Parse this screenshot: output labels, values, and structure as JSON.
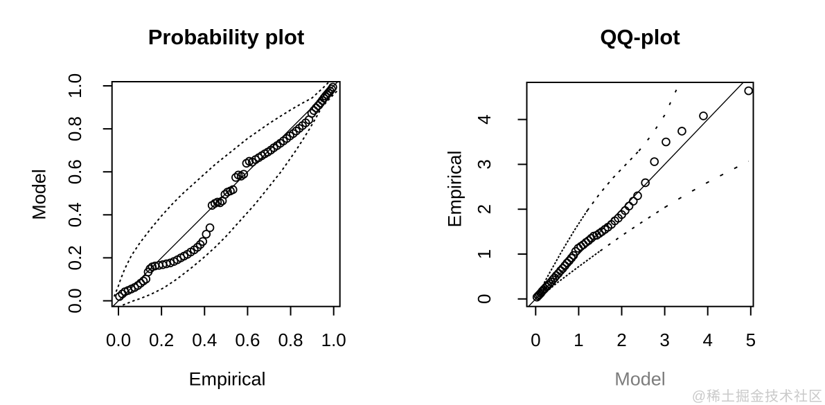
{
  "watermark": {
    "text": "@稀土掘金技术社区",
    "color": "#c9c9c9"
  },
  "chart_data": [
    {
      "type": "scatter",
      "title": "Probability plot",
      "xlabel": "Empirical",
      "ylabel": "Model",
      "xlim": [
        0,
        1
      ],
      "ylim": [
        0,
        1
      ],
      "grid": false,
      "legend": null,
      "marker": "open-circle",
      "reference_line": {
        "slope": 1,
        "intercept": 0,
        "style": "solid"
      },
      "band_style": "dashed",
      "x_tick_values": [
        0,
        0.2,
        0.4,
        0.6,
        0.8,
        1.0
      ],
      "x_tick_labels": [
        "0.0",
        "0.2",
        "0.4",
        "0.6",
        "0.8",
        "1.0"
      ],
      "y_tick_values": [
        0,
        0.2,
        0.4,
        0.6,
        0.8,
        1.0
      ],
      "y_tick_labels": [
        "0.0",
        "0.2",
        "0.4",
        "0.6",
        "0.8",
        "1.0"
      ],
      "points": [
        [
          0.005,
          0.02
        ],
        [
          0.018,
          0.032
        ],
        [
          0.03,
          0.042
        ],
        [
          0.045,
          0.048
        ],
        [
          0.06,
          0.055
        ],
        [
          0.075,
          0.062
        ],
        [
          0.09,
          0.071
        ],
        [
          0.103,
          0.082
        ],
        [
          0.116,
          0.092
        ],
        [
          0.128,
          0.101
        ],
        [
          0.138,
          0.134
        ],
        [
          0.147,
          0.149
        ],
        [
          0.157,
          0.158
        ],
        [
          0.17,
          0.162
        ],
        [
          0.188,
          0.165
        ],
        [
          0.206,
          0.168
        ],
        [
          0.223,
          0.172
        ],
        [
          0.241,
          0.176
        ],
        [
          0.258,
          0.183
        ],
        [
          0.274,
          0.191
        ],
        [
          0.29,
          0.2
        ],
        [
          0.305,
          0.208
        ],
        [
          0.32,
          0.216
        ],
        [
          0.336,
          0.227
        ],
        [
          0.352,
          0.237
        ],
        [
          0.367,
          0.249
        ],
        [
          0.38,
          0.262
        ],
        [
          0.392,
          0.276
        ],
        [
          0.408,
          0.31
        ],
        [
          0.425,
          0.34
        ],
        [
          0.435,
          0.444
        ],
        [
          0.448,
          0.453
        ],
        [
          0.46,
          0.459
        ],
        [
          0.472,
          0.456
        ],
        [
          0.483,
          0.465
        ],
        [
          0.495,
          0.495
        ],
        [
          0.507,
          0.506
        ],
        [
          0.52,
          0.511
        ],
        [
          0.532,
          0.517
        ],
        [
          0.545,
          0.574
        ],
        [
          0.557,
          0.585
        ],
        [
          0.57,
          0.58
        ],
        [
          0.582,
          0.589
        ],
        [
          0.595,
          0.64
        ],
        [
          0.608,
          0.649
        ],
        [
          0.622,
          0.645
        ],
        [
          0.637,
          0.657
        ],
        [
          0.652,
          0.666
        ],
        [
          0.666,
          0.675
        ],
        [
          0.68,
          0.684
        ],
        [
          0.694,
          0.692
        ],
        [
          0.708,
          0.701
        ],
        [
          0.722,
          0.712
        ],
        [
          0.737,
          0.722
        ],
        [
          0.752,
          0.733
        ],
        [
          0.767,
          0.744
        ],
        [
          0.782,
          0.755
        ],
        [
          0.797,
          0.767
        ],
        [
          0.812,
          0.778
        ],
        [
          0.826,
          0.79
        ],
        [
          0.84,
          0.802
        ],
        [
          0.855,
          0.815
        ],
        [
          0.87,
          0.828
        ],
        [
          0.885,
          0.842
        ],
        [
          0.898,
          0.872
        ],
        [
          0.908,
          0.885
        ],
        [
          0.918,
          0.897
        ],
        [
          0.928,
          0.908
        ],
        [
          0.938,
          0.92
        ],
        [
          0.947,
          0.932
        ],
        [
          0.955,
          0.943
        ],
        [
          0.962,
          0.952
        ],
        [
          0.969,
          0.96
        ],
        [
          0.976,
          0.968
        ],
        [
          0.983,
          0.976
        ],
        [
          0.99,
          0.985
        ],
        [
          0.996,
          0.994
        ]
      ],
      "upper_band": [
        [
          -0.02,
          0.02
        ],
        [
          0.0,
          0.07
        ],
        [
          0.01,
          0.1
        ],
        [
          0.03,
          0.15
        ],
        [
          0.06,
          0.21
        ],
        [
          0.1,
          0.27
        ],
        [
          0.15,
          0.335
        ],
        [
          0.2,
          0.395
        ],
        [
          0.25,
          0.45
        ],
        [
          0.3,
          0.5
        ],
        [
          0.35,
          0.545
        ],
        [
          0.4,
          0.59
        ],
        [
          0.45,
          0.635
        ],
        [
          0.5,
          0.675
        ],
        [
          0.55,
          0.715
        ],
        [
          0.6,
          0.755
        ],
        [
          0.65,
          0.79
        ],
        [
          0.7,
          0.825
        ],
        [
          0.75,
          0.857
        ],
        [
          0.8,
          0.888
        ],
        [
          0.85,
          0.917
        ],
        [
          0.9,
          0.944
        ],
        [
          0.93,
          0.972
        ],
        [
          0.95,
          0.99
        ],
        [
          0.965,
          1.005
        ],
        [
          0.98,
          1.02
        ]
      ],
      "lower_band": [
        [
          0.02,
          -0.02
        ],
        [
          0.07,
          0.0
        ],
        [
          0.1,
          0.01
        ],
        [
          0.15,
          0.03
        ],
        [
          0.21,
          0.06
        ],
        [
          0.27,
          0.1
        ],
        [
          0.335,
          0.15
        ],
        [
          0.395,
          0.2
        ],
        [
          0.45,
          0.25
        ],
        [
          0.5,
          0.3
        ],
        [
          0.545,
          0.35
        ],
        [
          0.59,
          0.4
        ],
        [
          0.635,
          0.45
        ],
        [
          0.675,
          0.5
        ],
        [
          0.715,
          0.55
        ],
        [
          0.755,
          0.6
        ],
        [
          0.79,
          0.65
        ],
        [
          0.825,
          0.7
        ],
        [
          0.857,
          0.75
        ],
        [
          0.888,
          0.8
        ],
        [
          0.917,
          0.85
        ],
        [
          0.944,
          0.9
        ],
        [
          0.972,
          0.93
        ],
        [
          0.99,
          0.95
        ],
        [
          1.005,
          0.965
        ],
        [
          1.02,
          0.98
        ]
      ]
    },
    {
      "type": "scatter",
      "title": "QQ-plot",
      "xlabel": "Model",
      "ylabel": "Empirical",
      "xlim": [
        0,
        5.05
      ],
      "ylim": [
        0,
        4.85
      ],
      "grid": false,
      "legend": null,
      "marker": "open-circle",
      "reference_line": {
        "slope": 1,
        "intercept": 0,
        "style": "solid"
      },
      "band_style": "dashed",
      "x_tick_values": [
        0,
        1,
        2,
        3,
        4,
        5
      ],
      "x_tick_labels": [
        "0",
        "1",
        "2",
        "3",
        "4",
        "5"
      ],
      "y_tick_values": [
        0,
        1,
        2,
        3,
        4
      ],
      "y_tick_labels": [
        "0",
        "1",
        "2",
        "3",
        "4"
      ],
      "points": [
        [
          0.03,
          0.04
        ],
        [
          0.06,
          0.07
        ],
        [
          0.09,
          0.1
        ],
        [
          0.12,
          0.13
        ],
        [
          0.15,
          0.17
        ],
        [
          0.18,
          0.2
        ],
        [
          0.21,
          0.23
        ],
        [
          0.25,
          0.27
        ],
        [
          0.28,
          0.3
        ],
        [
          0.32,
          0.34
        ],
        [
          0.36,
          0.38
        ],
        [
          0.4,
          0.43
        ],
        [
          0.44,
          0.47
        ],
        [
          0.48,
          0.52
        ],
        [
          0.53,
          0.57
        ],
        [
          0.58,
          0.63
        ],
        [
          0.63,
          0.68
        ],
        [
          0.68,
          0.74
        ],
        [
          0.73,
          0.8
        ],
        [
          0.78,
          0.85
        ],
        [
          0.83,
          0.91
        ],
        [
          0.88,
          0.97
        ],
        [
          0.93,
          1.06
        ],
        [
          0.99,
          1.13
        ],
        [
          1.05,
          1.17
        ],
        [
          1.11,
          1.21
        ],
        [
          1.17,
          1.26
        ],
        [
          1.23,
          1.3
        ],
        [
          1.29,
          1.35
        ],
        [
          1.35,
          1.4
        ],
        [
          1.42,
          1.42
        ],
        [
          1.48,
          1.46
        ],
        [
          1.54,
          1.5
        ],
        [
          1.61,
          1.55
        ],
        [
          1.68,
          1.6
        ],
        [
          1.76,
          1.66
        ],
        [
          1.84,
          1.74
        ],
        [
          1.92,
          1.8
        ],
        [
          2.0,
          1.88
        ],
        [
          2.08,
          1.97
        ],
        [
          2.17,
          2.07
        ],
        [
          2.27,
          2.18
        ],
        [
          2.37,
          2.3
        ],
        [
          2.55,
          2.59
        ],
        [
          2.76,
          3.06
        ],
        [
          3.03,
          3.5
        ],
        [
          3.4,
          3.74
        ],
        [
          3.9,
          4.08
        ],
        [
          4.95,
          4.64
        ]
      ],
      "upper_band": [
        [
          0,
          0
        ],
        [
          0.3,
          0.54
        ],
        [
          0.6,
          1.05
        ],
        [
          0.9,
          1.53
        ],
        [
          1.2,
          1.97
        ],
        [
          1.5,
          2.36
        ],
        [
          1.8,
          2.7
        ],
        [
          2.1,
          3.0
        ],
        [
          2.4,
          3.3
        ],
        [
          2.7,
          3.66
        ],
        [
          3.0,
          4.1
        ],
        [
          3.3,
          4.72
        ]
      ],
      "lower_band": [
        [
          0.05,
          0
        ],
        [
          0.5,
          0.36
        ],
        [
          1.0,
          0.72
        ],
        [
          1.5,
          1.07
        ],
        [
          2.0,
          1.41
        ],
        [
          2.5,
          1.73
        ],
        [
          3.0,
          2.04
        ],
        [
          3.5,
          2.33
        ],
        [
          4.0,
          2.6
        ],
        [
          4.5,
          2.85
        ],
        [
          4.95,
          3.07
        ]
      ]
    }
  ]
}
